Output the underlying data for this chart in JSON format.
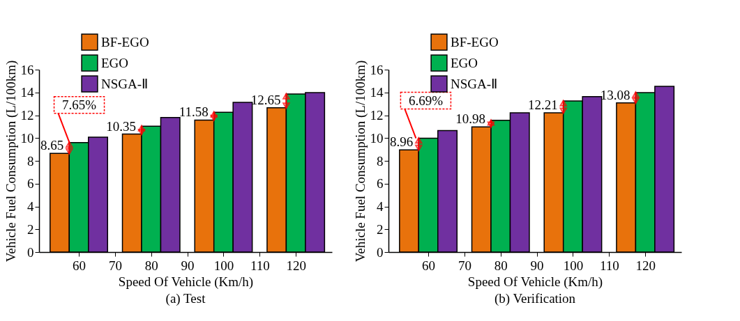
{
  "chart_data": [
    {
      "type": "bar",
      "title": "(a) Test",
      "xlabel": "Speed Of Vehicle (Km/h)",
      "ylabel": "Vehicle Fuel Consumption (L/100km)",
      "xlim": [
        49,
        130
      ],
      "xticks": [
        60,
        70,
        80,
        90,
        100,
        110,
        120
      ],
      "ylim": [
        0,
        16
      ],
      "yticks": [
        0,
        2,
        4,
        6,
        8,
        10,
        12,
        14,
        16
      ],
      "grid": false,
      "legend": "top left",
      "series": [
        {
          "name": "BF-EGO",
          "color": "#e8720c",
          "x": [
            54.7,
            74.7,
            94.7,
            114.7
          ],
          "values": [
            8.65,
            10.35,
            11.58,
            12.65
          ],
          "value_labels": [
            "8.65",
            "10.35",
            "11.58",
            "12.65"
          ]
        },
        {
          "name": "EGO",
          "color": "#00b050",
          "x": [
            60,
            80,
            100,
            120
          ],
          "values": [
            9.61,
            11.04,
            12.26,
            13.86
          ]
        },
        {
          "name": "NSGA-Ⅱ",
          "color": "#7030a0",
          "x": [
            65.3,
            85.3,
            105.3,
            125.3
          ],
          "values": [
            10.08,
            11.8,
            13.13,
            13.99
          ]
        }
      ],
      "annotations": [
        {
          "text": "7.65%",
          "x": 57.4,
          "y": 9.6
        }
      ]
    },
    {
      "type": "bar",
      "title": "(b) Verification",
      "xlabel": "Speed Of Vehicle (Km/h)",
      "ylabel": "Vehicle Fuel Consumption (L/100km)",
      "xlim": [
        49,
        130
      ],
      "xticks": [
        60,
        70,
        80,
        90,
        100,
        110,
        120
      ],
      "ylim": [
        0,
        16
      ],
      "yticks": [
        0,
        2,
        4,
        6,
        8,
        10,
        12,
        14,
        16
      ],
      "grid": false,
      "legend": "top left",
      "series": [
        {
          "name": "BF-EGO",
          "color": "#e8720c",
          "x": [
            54.7,
            74.7,
            94.7,
            114.7
          ],
          "values": [
            8.96,
            10.98,
            12.21,
            13.08
          ],
          "value_labels": [
            "8.96",
            "10.98",
            "12.21",
            "13.08"
          ]
        },
        {
          "name": "EGO",
          "color": "#00b050",
          "x": [
            60,
            80,
            100,
            120
          ],
          "values": [
            9.98,
            11.55,
            13.25,
            13.99
          ]
        },
        {
          "name": "NSGA-Ⅱ",
          "color": "#7030a0",
          "x": [
            65.3,
            85.3,
            105.3,
            125.3
          ],
          "values": [
            10.66,
            12.22,
            13.64,
            14.53
          ]
        }
      ],
      "annotations": [
        {
          "text": "6.69%",
          "x": 56.6,
          "y": 9.98
        }
      ]
    }
  ]
}
